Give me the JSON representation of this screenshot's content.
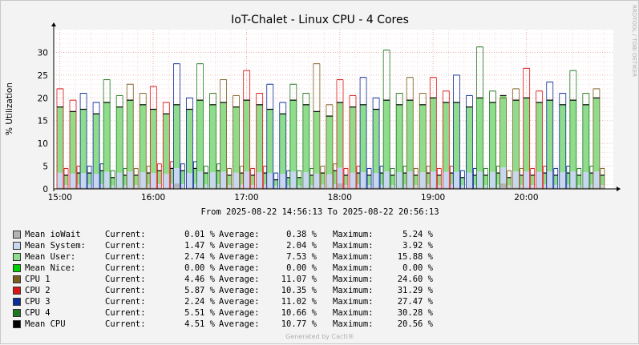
{
  "chart_data": {
    "type": "bar",
    "title": "IoT-Chalet - Linux CPU - 4 Cores",
    "ylabel": "% Utilization",
    "watermark": "RRDTOOL / TOBI OETIKER",
    "footer": "Generated by Cacti®",
    "period": "From 2025-08-22 14:56:13 To 2025-08-22 20:56:13",
    "ylim": [
      0,
      35
    ],
    "yticks": [
      0,
      5,
      10,
      15,
      20,
      25,
      30
    ],
    "xrange": [
      "14:56",
      "20:56"
    ],
    "xticks": [
      "15:00",
      "16:00",
      "17:00",
      "18:00",
      "19:00",
      "20:00"
    ],
    "stacked_area": true,
    "grid": true,
    "colors": {
      "ioWait": "#b4b4b4",
      "system": "#c8d7f0",
      "user": "#8fdc8c",
      "nice": "#00d000",
      "cpu1": "#7a5e1e",
      "cpu2": "#dc1414",
      "cpu3": "#0a2d96",
      "cpu4": "#1e7820",
      "mean_cpu": "#000000",
      "grid": "#e8a0a0",
      "axis": "#000000"
    },
    "series_samples": {
      "note_times": [
        "15:00",
        "15:15",
        "15:30",
        "15:45",
        "16:00",
        "16:15",
        "16:30",
        "16:45",
        "17:00",
        "17:15",
        "17:30",
        "17:45",
        "18:00",
        "18:15",
        "18:30",
        "18:45",
        "19:00",
        "19:15",
        "19:30",
        "19:45",
        "20:00",
        "20:15",
        "20:30",
        "20:45"
      ],
      "mean_cpu_high": [
        18,
        17.5,
        19,
        19.5,
        17.5,
        18.5,
        19.5,
        19,
        19.5,
        17.5,
        19.5,
        17,
        19,
        18.5,
        19.5,
        19.5,
        20,
        19,
        20,
        20.5,
        20,
        19.5,
        19.5,
        20
      ],
      "mean_cpu_low": [
        3,
        3.5,
        2.5,
        3,
        4,
        4,
        3.5,
        3,
        3,
        2,
        2.5,
        3.5,
        3,
        3,
        3,
        3,
        3,
        2.5,
        3,
        2.5,
        3,
        3,
        3,
        3
      ],
      "max_peaks": [
        22,
        21,
        24,
        23,
        22.5,
        27.5,
        27.5,
        24,
        26,
        23,
        23,
        27.5,
        24,
        24.5,
        30.5,
        24.5,
        24.5,
        25,
        31.2,
        20,
        26.5,
        23.5,
        26,
        22
      ]
    },
    "legend": [
      {
        "key": "ioWait",
        "name": "Mean ioWait",
        "current": "0.01 %",
        "average": "0.38 %",
        "maximum": "5.24 %"
      },
      {
        "key": "system",
        "name": "Mean System:",
        "current": "1.47 %",
        "average": "2.04 %",
        "maximum": "3.92 %"
      },
      {
        "key": "user",
        "name": "Mean User:",
        "current": "2.74 %",
        "average": "7.53 %",
        "maximum": "15.88 %"
      },
      {
        "key": "nice",
        "name": "Mean Nice:",
        "current": "0.00 %",
        "average": "0.00 %",
        "maximum": "0.00 %"
      },
      {
        "key": "cpu1",
        "name": "CPU 1",
        "current": "4.46 %",
        "average": "11.07 %",
        "maximum": "24.60 %"
      },
      {
        "key": "cpu2",
        "name": "CPU 2",
        "current": "5.87 %",
        "average": "10.35 %",
        "maximum": "31.29 %"
      },
      {
        "key": "cpu3",
        "name": "CPU 3",
        "current": "2.24 %",
        "average": "11.02 %",
        "maximum": "27.47 %"
      },
      {
        "key": "cpu4",
        "name": "CPU 4",
        "current": "5.51 %",
        "average": "10.66 %",
        "maximum": "30.28 %"
      },
      {
        "key": "mean_cpu",
        "name": "Mean CPU",
        "current": "4.51 %",
        "average": "10.77 %",
        "maximum": "20.56 %"
      }
    ],
    "legend_labels": {
      "current": "Current:",
      "average": "Average:",
      "maximum": "Maximum:"
    }
  }
}
